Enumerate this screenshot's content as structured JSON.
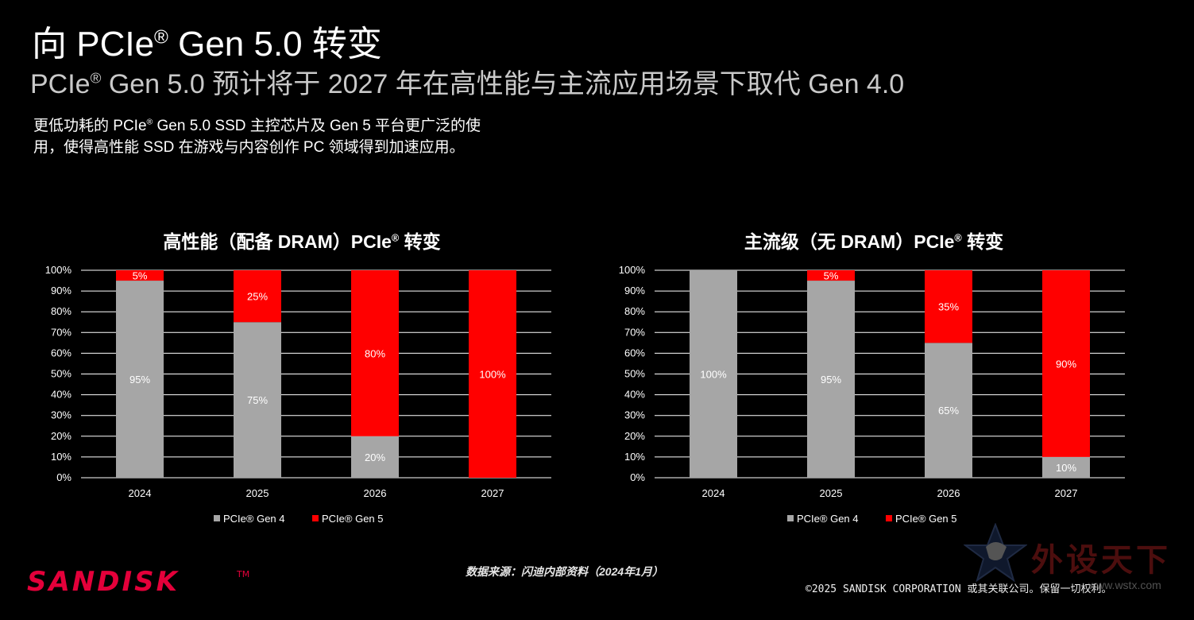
{
  "header": {
    "title": "向 PCIe® Gen 5.0 转变",
    "subtitle": "PCIe® Gen 5.0 预计将于 2027 年在高性能与主流应用场景下取代 Gen 4.0",
    "description": "更低功耗的 PCIe® Gen 5.0 SSD 主控芯片及 Gen 5 平台更广泛的使用，使得高性能 SSD 在游戏与内容创作 PC 领域得到加速应用。"
  },
  "colors": {
    "gen4": "#a6a6a6",
    "gen5": "#ff0000",
    "grid": "#ffffff",
    "background": "#000000"
  },
  "chart_data": [
    {
      "type": "bar",
      "stacked": true,
      "title": "高性能（配备 DRAM）PCIe® 转变",
      "categories": [
        "2024",
        "2025",
        "2026",
        "2027"
      ],
      "yticks": [
        "0%",
        "10%",
        "20%",
        "30%",
        "40%",
        "50%",
        "60%",
        "70%",
        "80%",
        "90%",
        "100%"
      ],
      "ylim": [
        0,
        100
      ],
      "legend_position": "bottom",
      "series": [
        {
          "name": "PCIe® Gen 4",
          "values": [
            95,
            75,
            20,
            0
          ],
          "labels": [
            "95%",
            "75%",
            "20%",
            ""
          ]
        },
        {
          "name": "PCIe® Gen 5",
          "values": [
            5,
            25,
            80,
            100
          ],
          "labels": [
            "5%",
            "25%",
            "80%",
            "100%"
          ]
        }
      ]
    },
    {
      "type": "bar",
      "stacked": true,
      "title": "主流级（无 DRAM）PCIe® 转变",
      "categories": [
        "2024",
        "2025",
        "2026",
        "2027"
      ],
      "yticks": [
        "0%",
        "10%",
        "20%",
        "30%",
        "40%",
        "50%",
        "60%",
        "70%",
        "80%",
        "90%",
        "100%"
      ],
      "ylim": [
        0,
        100
      ],
      "legend_position": "bottom",
      "series": [
        {
          "name": "PCIe® Gen 4",
          "values": [
            100,
            95,
            65,
            10
          ],
          "labels": [
            "100%",
            "95%",
            "65%",
            "10%"
          ]
        },
        {
          "name": "PCIe® Gen 5",
          "values": [
            0,
            5,
            35,
            90
          ],
          "labels": [
            "",
            "5%",
            "35%",
            "90%"
          ]
        }
      ]
    }
  ],
  "footer": {
    "source": "数据来源：闪迪内部资料（2024年1月）",
    "logo": "SANDISK™",
    "copyright": "©2025 SANDISK CORPORATION 或其关联公司。保留一切权利。",
    "watermark": "外设天下",
    "watermark_url": "www.wstx.com"
  }
}
